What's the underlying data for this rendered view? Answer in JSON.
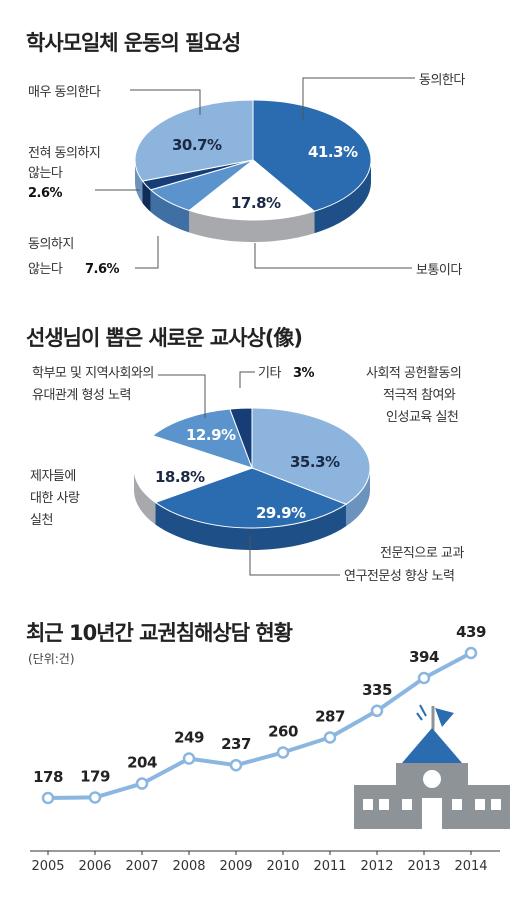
{
  "chart_data": [
    {
      "type": "pie",
      "title": "학사모일체 운동의 필요성",
      "slices": [
        {
          "label": "동의한다",
          "label_lines": [
            "동의한다"
          ],
          "value": 41.3,
          "display": "41.3%",
          "color": "#2b6cb0",
          "side": "#1e4f86"
        },
        {
          "label": "보통이다",
          "label_lines": [
            "보통이다"
          ],
          "value": 17.8,
          "display": "17.8%",
          "color": "#ffffff",
          "side": "#a7a9ac"
        },
        {
          "label": "동의하지 않는다",
          "label_lines": [
            "동의하지",
            "않는다"
          ],
          "value": 7.6,
          "display": "7.6%",
          "color": "#5b93cc",
          "side": "#3f6fa3"
        },
        {
          "label": "전혀 동의하지 않는다",
          "label_lines": [
            "전혀 동의하지",
            "않는다"
          ],
          "value": 2.6,
          "display": "2.6%",
          "color": "#173d77",
          "side": "#102c57"
        },
        {
          "label": "매우 동의한다",
          "label_lines": [
            "매우 동의한다"
          ],
          "value": 30.7,
          "display": "30.7%",
          "color": "#8db4dc",
          "side": "#6b93bd"
        }
      ]
    },
    {
      "type": "pie",
      "title": "선생님이 뽑은 새로운 교사상(像)",
      "slices": [
        {
          "label": "사회적 공헌활동의 적극적 참여와 인성교육 실천",
          "label_lines": [
            "사회적 공헌활동의",
            "적극적 참여와",
            "인성교육 실천"
          ],
          "value": 35.3,
          "display": "35.3%",
          "color": "#8db4dc",
          "side": "#6b93bd"
        },
        {
          "label": "전문직으로 교과 연구전문성 향상 노력",
          "label_lines": [
            "전문직으로 교과",
            "연구전문성 향상 노력"
          ],
          "value": 29.9,
          "display": "29.9%",
          "color": "#2b6cb0",
          "side": "#1e4f86"
        },
        {
          "label": "제자들에 대한 사랑 실천",
          "label_lines": [
            "제자들에",
            "대한 사랑",
            "실천"
          ],
          "value": 18.8,
          "display": "18.8%",
          "color": "#ffffff",
          "side": "#a7a9ac"
        },
        {
          "label": "학부모 및 지역사회와의 유대관계 형성 노력",
          "label_lines": [
            "학부모 및 지역사회와의",
            "유대관계 형성 노력"
          ],
          "value": 12.9,
          "display": "12.9%",
          "color": "#5b93cc",
          "side": "#3f6fa3"
        },
        {
          "label": "기타",
          "label_lines": [
            "기타"
          ],
          "value": 3,
          "display": "3%",
          "color": "#173d77",
          "side": "#102c57"
        }
      ]
    },
    {
      "type": "line",
      "title": "최근 10년간 교권침해상담 현황",
      "unit_label": "(단위:건)",
      "x": [
        "2005",
        "2006",
        "2007",
        "2008",
        "2009",
        "2010",
        "2011",
        "2012",
        "2013",
        "2014"
      ],
      "series": [
        {
          "values": [
            178,
            179,
            204,
            249,
            237,
            260,
            287,
            335,
            394,
            439
          ]
        }
      ],
      "line_color": "#8ab6e0",
      "ylim": [
        150,
        460
      ],
      "grid": false
    }
  ],
  "colors": {
    "accent": "#2b6cb0",
    "illustration": "#8e9398",
    "roof": "#2b6cb0"
  },
  "icons": {
    "school": "school-building-icon",
    "flag": "flag-icon"
  }
}
